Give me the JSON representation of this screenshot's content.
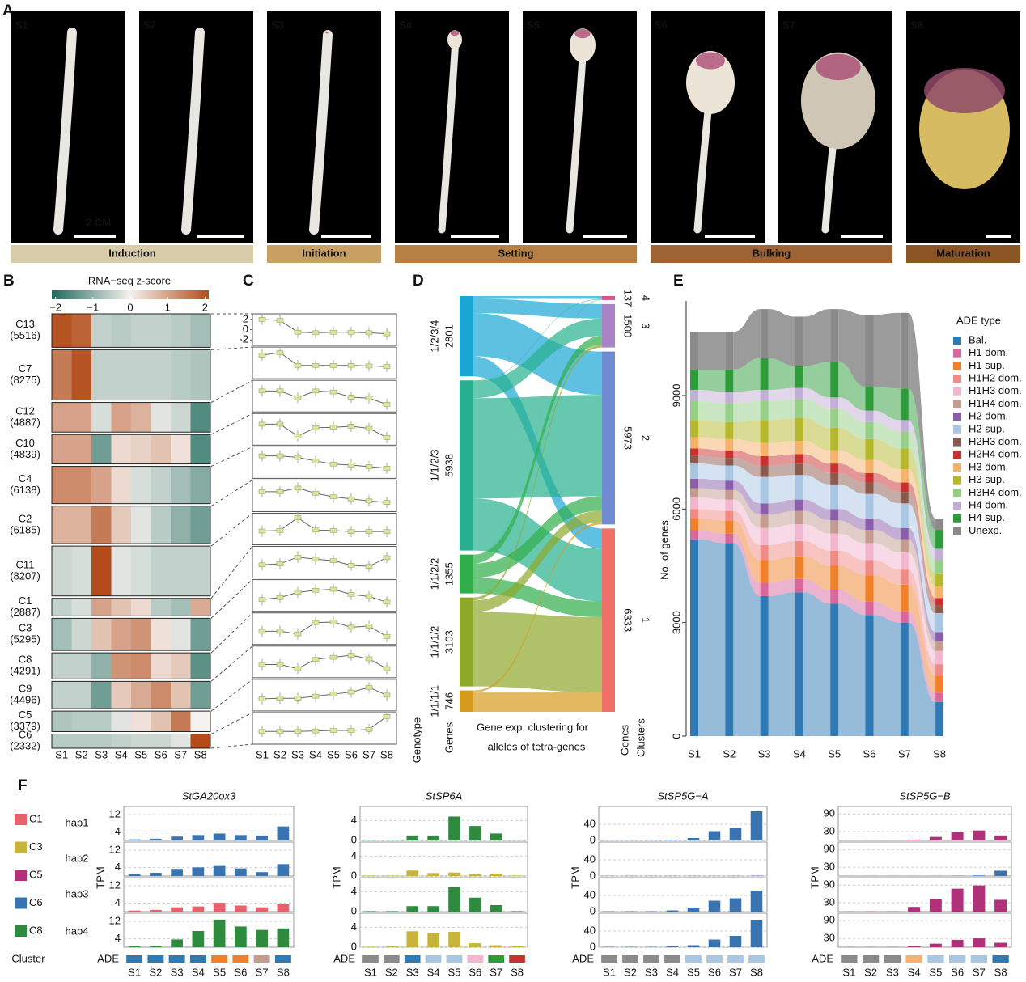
{
  "panel_a": {
    "letter": "A",
    "stages": [
      "S1",
      "S2",
      "S3",
      "S4",
      "S5",
      "S6",
      "S7",
      "S8"
    ],
    "scale_label": "2 CM",
    "phases": [
      {
        "label": "Induction",
        "color": "#d7cba8"
      },
      {
        "label": "Initiation",
        "color": "#c9a064"
      },
      {
        "label": "Setting",
        "color": "#b68044"
      },
      {
        "label": "Bulking",
        "color": "#9e6435"
      },
      {
        "label": "Maturation",
        "color": "#8b5526"
      }
    ]
  },
  "panel_f": {
    "letter": "F",
    "legend_title": "Cluster",
    "clusters": [
      {
        "name": "C1",
        "color": "#e8606a"
      },
      {
        "name": "C3",
        "color": "#c8b43a"
      },
      {
        "name": "C5",
        "color": "#b0307a"
      },
      {
        "name": "C6",
        "color": "#3a74b0"
      },
      {
        "name": "C8",
        "color": "#2e8b3e"
      }
    ],
    "rows": [
      "hap1",
      "hap2",
      "hap3",
      "hap4"
    ]
  },
  "chart_data": [
    {
      "type": "heatmap",
      "panel": "B",
      "colorbar_title": "RNA−seq z-score",
      "colorbar_lim": [
        -2.1,
        2.1
      ],
      "colorbar_ticks": [
        {
          "value": -2,
          "label": "−2"
        },
        {
          "value": -1,
          "label": "−1"
        },
        0,
        1,
        2
      ],
      "colors": [
        "#1f6b5c",
        "#f5f1ee",
        "#b34c1a"
      ],
      "categories": [
        "S1",
        "S2",
        "S3",
        "S4",
        "S5",
        "S6",
        "S7",
        "S8"
      ],
      "rows": [
        "C13",
        "C7",
        "C12",
        "C10",
        "C4",
        "C2",
        "C11",
        "C1",
        "C3",
        "C8",
        "C9",
        "C5",
        "C6"
      ],
      "row_sizes": [
        5516,
        8275,
        4887,
        4839,
        6138,
        6185,
        8207,
        2887,
        5295,
        4291,
        4496,
        3379,
        2332
      ],
      "row_size_labels": [
        "(5516)",
        "(8275)",
        "(4887)",
        "(4839)",
        "(6138)",
        "(6185)",
        "(8207)",
        "(2887)",
        "(5295)",
        "(4291)",
        "(4496)",
        "(3379)",
        "(2332)"
      ],
      "values": [
        [
          2,
          1.8,
          -0.5,
          -0.6,
          -0.5,
          -0.5,
          -0.6,
          -0.8
        ],
        [
          1.5,
          2,
          -0.5,
          -0.5,
          -0.5,
          -0.5,
          -0.6,
          -0.7
        ],
        [
          1,
          1,
          -0.3,
          1,
          0.8,
          -0.2,
          -0.4,
          -1.6
        ],
        [
          1,
          1,
          -1.3,
          0.3,
          0.4,
          0.6,
          0.2,
          -1.6
        ],
        [
          1.3,
          1.3,
          1,
          0.3,
          -0.3,
          -0.5,
          -0.8,
          -1.1
        ],
        [
          0.8,
          0.8,
          1.5,
          0.5,
          -0.2,
          -0.6,
          -1,
          -1.3
        ],
        [
          -0.4,
          -0.3,
          2.2,
          -0.2,
          -0.3,
          -0.5,
          -0.5,
          -0.5
        ],
        [
          -0.5,
          -0.3,
          1,
          0.6,
          0.3,
          -0.6,
          -0.8,
          0.9
        ],
        [
          -0.8,
          -0.4,
          0.6,
          1,
          1.2,
          0.2,
          -0.2,
          -1.3
        ],
        [
          -0.5,
          -0.5,
          -1,
          1.2,
          1.3,
          0.3,
          0.5,
          -1.5
        ],
        [
          -0.5,
          -0.5,
          -1.3,
          0.5,
          0.9,
          1.3,
          0.6,
          -1.3
        ],
        [
          -0.7,
          -0.6,
          -0.6,
          -0.2,
          0.2,
          0.6,
          1.5,
          0
        ],
        [
          -0.6,
          -0.6,
          -0.6,
          -0.5,
          -0.4,
          -0.4,
          -0.2,
          2.3
        ]
      ]
    },
    {
      "type": "line_profiles",
      "panel": "C",
      "categories": [
        "S1",
        "S2",
        "S3",
        "S4",
        "S5",
        "S6",
        "S7",
        "S8"
      ],
      "ylim": [
        -2.6,
        2.6
      ],
      "yticks": [
        2,
        0,
        -2
      ],
      "color": "#d9e6a0"
    },
    {
      "type": "sankey",
      "panel": "D",
      "left_nodes": [
        {
          "label": "1/2/3/4",
          "value": 2801,
          "color": "#1ba7d6"
        },
        {
          "label": "1/1/2/3",
          "value": 5938,
          "color": "#27b08f"
        },
        {
          "label": "1/1/2/2",
          "value": 1355,
          "color": "#2fae4a"
        },
        {
          "label": "1/1/1/2",
          "value": 3103,
          "color": "#8ea82a"
        },
        {
          "label": "1/1/1/1",
          "value": 746,
          "color": "#d69a1d"
        }
      ],
      "right_nodes": [
        {
          "label": "4",
          "value": 137,
          "color": "#e0508f"
        },
        {
          "label": "3",
          "value": 1500,
          "color": "#a983c6"
        },
        {
          "label": "2",
          "value": 5973,
          "color": "#6f8bd1"
        },
        {
          "label": "1",
          "value": 6333,
          "color": "#ee6e6a"
        }
      ],
      "flows": [
        [
          100,
          500,
          1500,
          701
        ],
        [
          20,
          600,
          3500,
          1818
        ],
        [
          10,
          300,
          500,
          545
        ],
        [
          5,
          100,
          400,
          2598
        ],
        [
          2,
          0,
          73,
          671
        ]
      ],
      "left_axis_labels": [
        "Genotype",
        "Genes"
      ],
      "right_axis_labels": [
        "Genes",
        "Clusters"
      ],
      "xlabel": [
        "Gene exp. clustering for",
        "alleles of tetra-genes"
      ]
    },
    {
      "type": "alluvial",
      "panel": "E",
      "categories": [
        "S1",
        "S2",
        "S3",
        "S4",
        "S5",
        "S6",
        "S7",
        "S8"
      ],
      "ylabel": "No. of genes",
      "ylim": [
        0,
        11500
      ],
      "yticks": [
        0,
        3000,
        6000,
        9000
      ],
      "legend_title": "ADE type",
      "series": [
        {
          "name": "Bal.",
          "color": "#2f7ab5",
          "values": [
            5200,
            5100,
            3700,
            3800,
            3500,
            3200,
            3000,
            900
          ]
        },
        {
          "name": "H1 dom.",
          "color": "#d8679c",
          "values": [
            250,
            250,
            350,
            350,
            350,
            350,
            300,
            250
          ]
        },
        {
          "name": "H1 sup.",
          "color": "#f0812a",
          "values": [
            300,
            350,
            600,
            600,
            650,
            700,
            700,
            450
          ]
        },
        {
          "name": "H1H2 dom.",
          "color": "#f08a84",
          "values": [
            250,
            250,
            400,
            400,
            400,
            400,
            400,
            300
          ]
        },
        {
          "name": "H1H3 dom.",
          "color": "#f2b6cf",
          "values": [
            300,
            300,
            450,
            450,
            450,
            450,
            450,
            350
          ]
        },
        {
          "name": "H1H4 dom.",
          "color": "#c49b8f",
          "values": [
            250,
            250,
            350,
            350,
            350,
            350,
            350,
            250
          ]
        },
        {
          "name": "H2 dom.",
          "color": "#8a5ea8",
          "values": [
            250,
            250,
            300,
            300,
            300,
            300,
            300,
            250
          ]
        },
        {
          "name": "H2 sup.",
          "color": "#a9c6e3",
          "values": [
            400,
            400,
            700,
            650,
            650,
            650,
            650,
            500
          ]
        },
        {
          "name": "H2H3 dom.",
          "color": "#8b5a4d",
          "values": [
            200,
            200,
            300,
            300,
            300,
            300,
            300,
            200
          ]
        },
        {
          "name": "H2H4 dom.",
          "color": "#c8312f",
          "values": [
            200,
            200,
            250,
            250,
            250,
            250,
            250,
            200
          ]
        },
        {
          "name": "H3 dom.",
          "color": "#f6b26b",
          "values": [
            300,
            300,
            350,
            350,
            350,
            350,
            350,
            300
          ]
        },
        {
          "name": "H3 sup.",
          "color": "#b5b82a",
          "values": [
            450,
            450,
            600,
            600,
            600,
            550,
            550,
            350
          ]
        },
        {
          "name": "H3H4 dom.",
          "color": "#96cf87",
          "values": [
            500,
            500,
            500,
            500,
            500,
            450,
            450,
            350
          ]
        },
        {
          "name": "H4 dom.",
          "color": "#c3aed6",
          "values": [
            300,
            300,
            300,
            300,
            300,
            300,
            300,
            300
          ]
        },
        {
          "name": "H4 sup.",
          "color": "#2e9c3a",
          "values": [
            534,
            584,
            834,
            584,
            934,
            634,
            834,
            500
          ]
        },
        {
          "name": "Unexp.",
          "color": "#8a8a8a",
          "values": [
            1000,
            1000,
            1300,
            1300,
            1400,
            1900,
            2000,
            300
          ]
        }
      ]
    },
    {
      "type": "bar_facets",
      "title": "StGA20ox3",
      "ylabel": "TPM",
      "ade_label": "ADE",
      "categories": [
        "S1",
        "S2",
        "S3",
        "S4",
        "S5",
        "S6",
        "S7",
        "S8"
      ],
      "ylim": [
        0,
        15
      ],
      "yticks": [
        4,
        12
      ],
      "ade_colors": [
        "#2f7ab5",
        "#2f7ab5",
        "#2f7ab5",
        "#2f7ab5",
        "#f0812a",
        "#f0812a",
        "#c49b8f",
        "#2f7ab5"
      ],
      "series": [
        {
          "color": "#3a74b0",
          "values": [
            0.5,
            0.8,
            1.8,
            2.5,
            3.2,
            2.5,
            2.3,
            6.5
          ]
        },
        {
          "color": "#3a74b0",
          "values": [
            1,
            1.5,
            3.3,
            4,
            5,
            3.5,
            1.8,
            5.5
          ]
        },
        {
          "color": "#e8606a",
          "values": [
            0.5,
            0.8,
            2,
            2.4,
            4.1,
            2.8,
            2,
            3.4
          ]
        },
        {
          "color": "#2e8b3e",
          "values": [
            0.5,
            0.7,
            3.6,
            7.5,
            12.8,
            9.6,
            8,
            8.7
          ]
        }
      ]
    },
    {
      "type": "bar_facets",
      "title": "StSP6A",
      "ylabel": "TPM",
      "ade_label": "ADE",
      "categories": [
        "S1",
        "S2",
        "S3",
        "S4",
        "S5",
        "S6",
        "S7",
        "S8"
      ],
      "ylim": [
        0,
        6.5
      ],
      "yticks": [
        0,
        4
      ],
      "ade_colors": [
        "#8a8a8a",
        "#8a8a8a",
        "#2f7ab5",
        "#a9c6e3",
        "#a9c6e3",
        "#f2b6cf",
        "#2e9c3a",
        "#c8312f"
      ],
      "series": [
        {
          "color": "#2e8b3e",
          "values": [
            0.1,
            0.1,
            1,
            1,
            4.8,
            2.9,
            1.4,
            0.1
          ]
        },
        {
          "color": "#c8b43a",
          "values": [
            0.1,
            0.1,
            1.1,
            0.6,
            0.7,
            0.4,
            0.5,
            0.1
          ]
        },
        {
          "color": "#2e8b3e",
          "values": [
            0.1,
            0.1,
            1.1,
            1.1,
            4.9,
            2.8,
            1.3,
            0.1
          ]
        },
        {
          "color": "#c8b43a",
          "values": [
            0.1,
            0.2,
            3.2,
            2.8,
            3.1,
            0.8,
            0.4,
            0.2
          ]
        }
      ]
    },
    {
      "type": "bar_facets",
      "title": "StSP5G−A",
      "ylabel": "TPM",
      "ade_label": "ADE",
      "categories": [
        "S1",
        "S2",
        "S3",
        "S4",
        "S5",
        "S6",
        "S7",
        "S8"
      ],
      "ylim": [
        0,
        80
      ],
      "yticks": [
        0,
        40
      ],
      "ade_colors": [
        "#8a8a8a",
        "#8a8a8a",
        "#8a8a8a",
        "#8a8a8a",
        "#a9c6e3",
        "#a9c6e3",
        "#a9c6e3",
        "#a9c6e3"
      ],
      "series": [
        {
          "color": "#3a74b0",
          "values": [
            1,
            1,
            1,
            2,
            6,
            23,
            31,
            72
          ]
        },
        {
          "color": "#3a74b0",
          "values": [
            0.5,
            0.5,
            0.5,
            0.5,
            0.5,
            0.5,
            0.5,
            1
          ]
        },
        {
          "color": "#3a74b0",
          "values": [
            1,
            1,
            1,
            3,
            10,
            27,
            33,
            52
          ]
        },
        {
          "color": "#3a74b0",
          "values": [
            1,
            1,
            1,
            2,
            5,
            19,
            28,
            68
          ]
        }
      ]
    },
    {
      "type": "bar_facets",
      "title": "StSP5G−B",
      "ylabel": "TPM",
      "ade_label": "ADE",
      "categories": [
        "S1",
        "S2",
        "S3",
        "S4",
        "S5",
        "S6",
        "S7",
        "S8"
      ],
      "ylim": [
        0,
        110
      ],
      "yticks": [
        30,
        90
      ],
      "ade_colors": [
        "#8a8a8a",
        "#8a8a8a",
        "#8a8a8a",
        "#f6b26b",
        "#a9c6e3",
        "#a9c6e3",
        "#a9c6e3",
        "#2f7ab5"
      ],
      "series": [
        {
          "color": "#b0307a",
          "values": [
            0.5,
            0.5,
            1,
            3,
            12,
            28,
            34,
            17
          ]
        },
        {
          "color": "#3a74b0",
          "values": [
            0.5,
            0.5,
            0.5,
            0.5,
            0.5,
            1,
            2,
            18
          ]
        },
        {
          "color": "#b0307a",
          "values": [
            0.5,
            1,
            1,
            16,
            42,
            78,
            89,
            40
          ]
        },
        {
          "color": "#b0307a",
          "values": [
            0.5,
            0.5,
            1,
            3,
            12,
            25,
            30,
            15
          ]
        }
      ]
    }
  ]
}
